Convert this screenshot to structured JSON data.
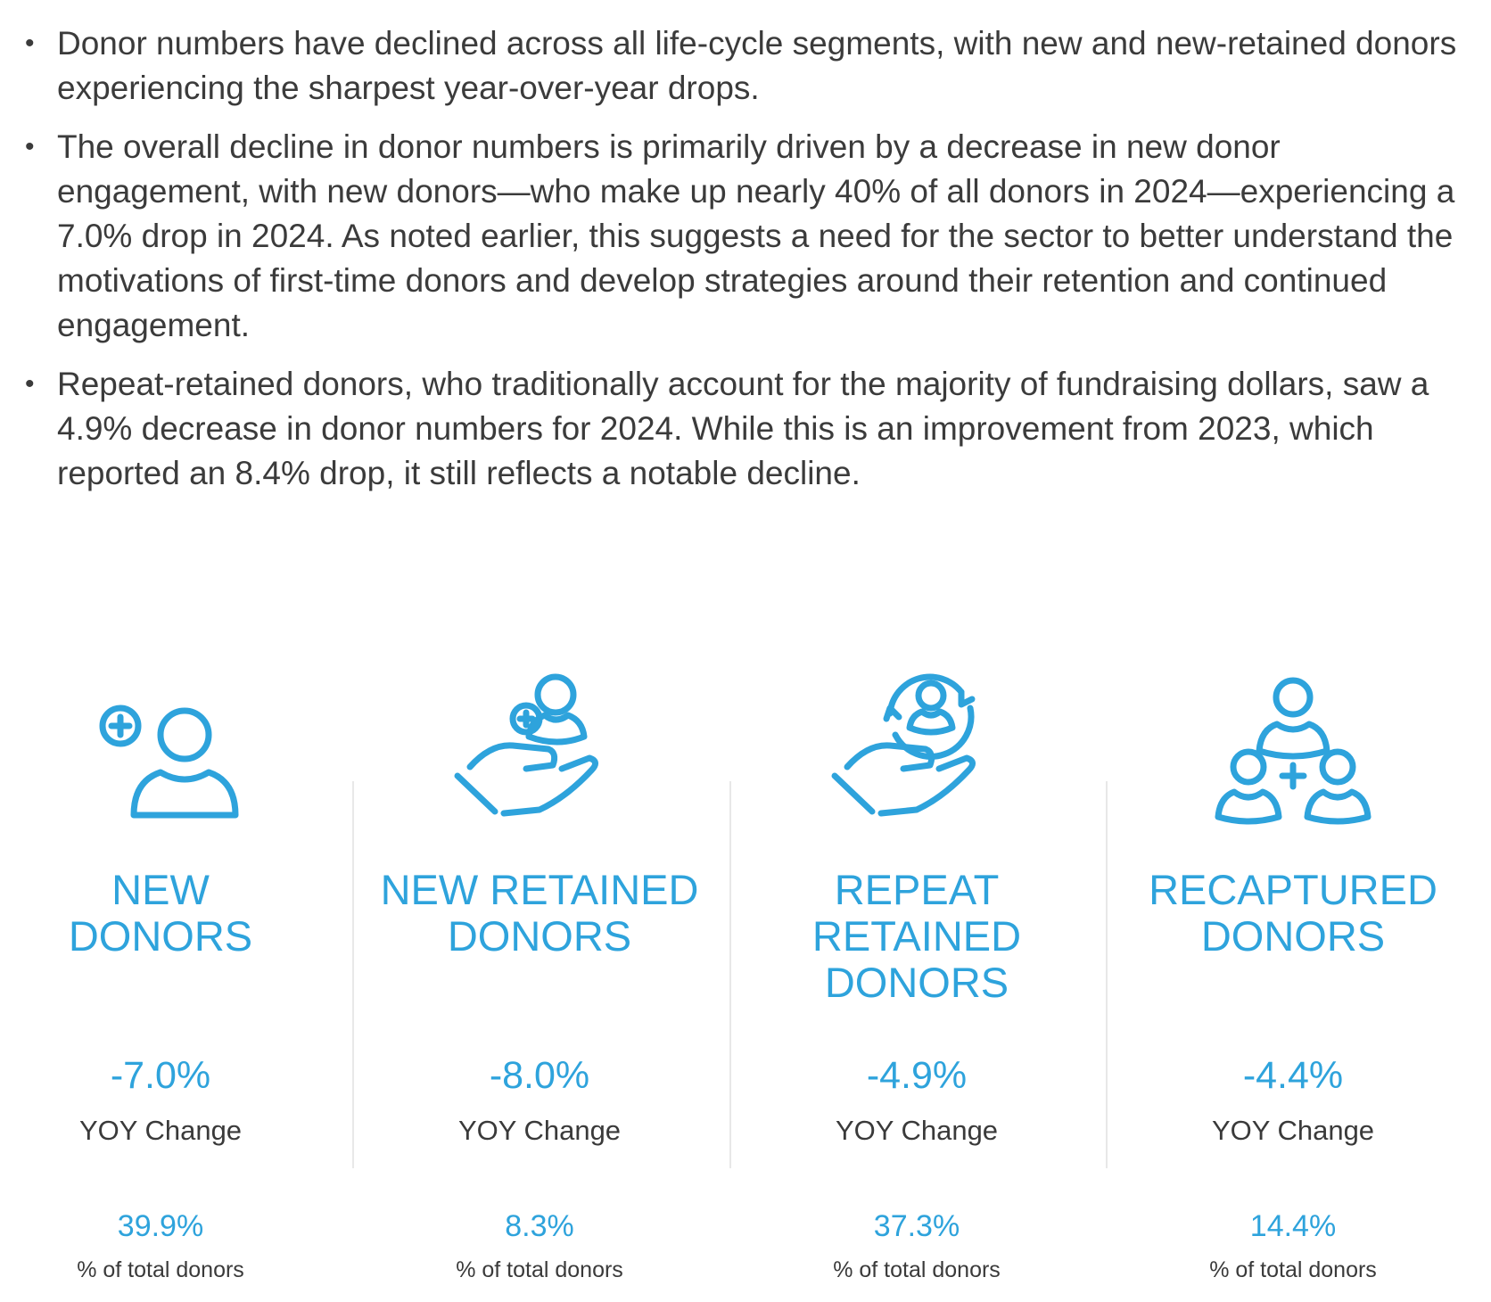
{
  "bullets": [
    "Donor numbers have declined across all life-cycle segments, with new and new-retained donors experiencing the sharpest year-over-year drops.",
    "The overall decline in donor numbers is primarily driven by a decrease in new donor engagement, with new donors—who make up nearly 40% of all donors in 2024—experiencing a 7.0% drop in 2024. As noted earlier, this suggests a need for the sector to better understand the motivations of first-time donors and develop strategies around their retention and continued engagement.",
    "Repeat-retained donors, who traditionally account for the majority of fundraising dollars, saw a 4.9% decrease in donor numbers for 2024. While this is an improvement from 2023, which reported an 8.4% drop, it still reflects a notable decline."
  ],
  "segments": [
    {
      "icon": "new-donor-icon",
      "title_lines": [
        "NEW",
        "DONORS"
      ],
      "yoy": "-7.0%",
      "yoy_label": "YOY Change",
      "pct": "39.9%",
      "pct_label": "% of total donors"
    },
    {
      "icon": "new-retained-donor-icon",
      "title_lines": [
        "NEW RETAINED",
        "DONORS"
      ],
      "yoy": "-8.0%",
      "yoy_label": "YOY Change",
      "pct": "8.3%",
      "pct_label": "% of total donors"
    },
    {
      "icon": "repeat-retained-donor-icon",
      "title_lines": [
        "REPEAT",
        "RETAINED",
        "DONORS"
      ],
      "yoy": "-4.9%",
      "yoy_label": "YOY Change",
      "pct": "37.3%",
      "pct_label": "% of total donors"
    },
    {
      "icon": "recaptured-donor-icon",
      "title_lines": [
        "RECAPTURED",
        "DONORS"
      ],
      "yoy": "-4.4%",
      "yoy_label": "YOY Change",
      "pct": "14.4%",
      "pct_label": "% of total donors"
    }
  ],
  "colors": {
    "accent": "#2ea3dc",
    "text": "#3a3a3a",
    "divider": "#e8e8e8"
  }
}
